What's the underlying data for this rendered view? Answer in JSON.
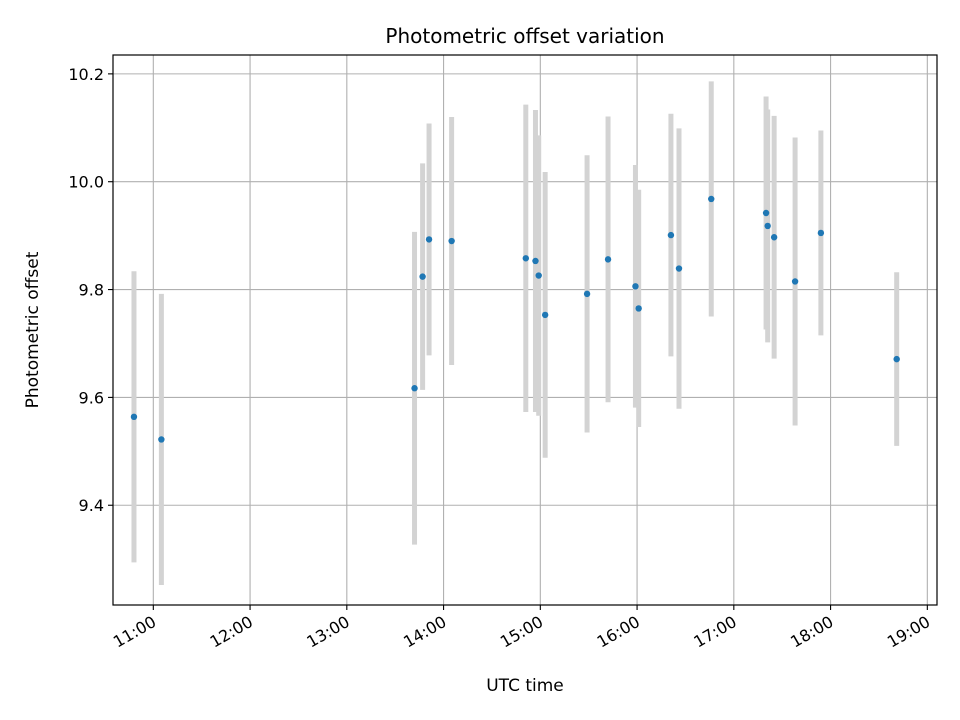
{
  "chart_data": {
    "type": "scatter",
    "title": "Photometric offset variation",
    "xlabel": "UTC time",
    "ylabel": "Photometric offset",
    "grid": true,
    "xlim": [
      "10:35",
      "19:06"
    ],
    "ylim": [
      9.215,
      10.235
    ],
    "x_ticks": [
      "11:00",
      "12:00",
      "13:00",
      "14:00",
      "15:00",
      "16:00",
      "17:00",
      "18:00",
      "19:00"
    ],
    "y_ticks": [
      9.4,
      9.6,
      9.8,
      10.0,
      10.2
    ],
    "y_tick_labels": [
      "9.4",
      "9.6",
      "9.8",
      "10.0",
      "10.2"
    ],
    "marker_color": "#1f77b4",
    "errorbar_color": "#d3d3d3",
    "series": [
      {
        "points": [
          {
            "x": "10:48",
            "y": 9.564,
            "yerr": 0.27
          },
          {
            "x": "11:05",
            "y": 9.522,
            "yerr": 0.27
          },
          {
            "x": "13:42",
            "y": 9.617,
            "yerr": 0.29
          },
          {
            "x": "13:47",
            "y": 9.824,
            "yerr": 0.21
          },
          {
            "x": "13:51",
            "y": 9.893,
            "yerr": 0.215
          },
          {
            "x": "14:05",
            "y": 9.89,
            "yerr": 0.23
          },
          {
            "x": "14:51",
            "y": 9.858,
            "yerr": 0.285
          },
          {
            "x": "14:57",
            "y": 9.853,
            "yerr": 0.28
          },
          {
            "x": "14:59",
            "y": 9.826,
            "yerr": 0.26
          },
          {
            "x": "15:03",
            "y": 9.753,
            "yerr": 0.265
          },
          {
            "x": "15:29",
            "y": 9.792,
            "yerr": 0.257
          },
          {
            "x": "15:42",
            "y": 9.856,
            "yerr": 0.265
          },
          {
            "x": "15:59",
            "y": 9.806,
            "yerr": 0.225
          },
          {
            "x": "16:01",
            "y": 9.765,
            "yerr": 0.22
          },
          {
            "x": "16:21",
            "y": 9.901,
            "yerr": 0.225
          },
          {
            "x": "16:26",
            "y": 9.839,
            "yerr": 0.26
          },
          {
            "x": "16:46",
            "y": 9.968,
            "yerr": 0.218
          },
          {
            "x": "17:20",
            "y": 9.942,
            "yerr": 0.216
          },
          {
            "x": "17:21",
            "y": 9.918,
            "yerr": 0.216
          },
          {
            "x": "17:25",
            "y": 9.897,
            "yerr": 0.225
          },
          {
            "x": "17:38",
            "y": 9.815,
            "yerr": 0.267
          },
          {
            "x": "17:54",
            "y": 9.905,
            "yerr": 0.19
          },
          {
            "x": "18:41",
            "y": 9.671,
            "yerr": 0.161
          }
        ]
      }
    ]
  }
}
